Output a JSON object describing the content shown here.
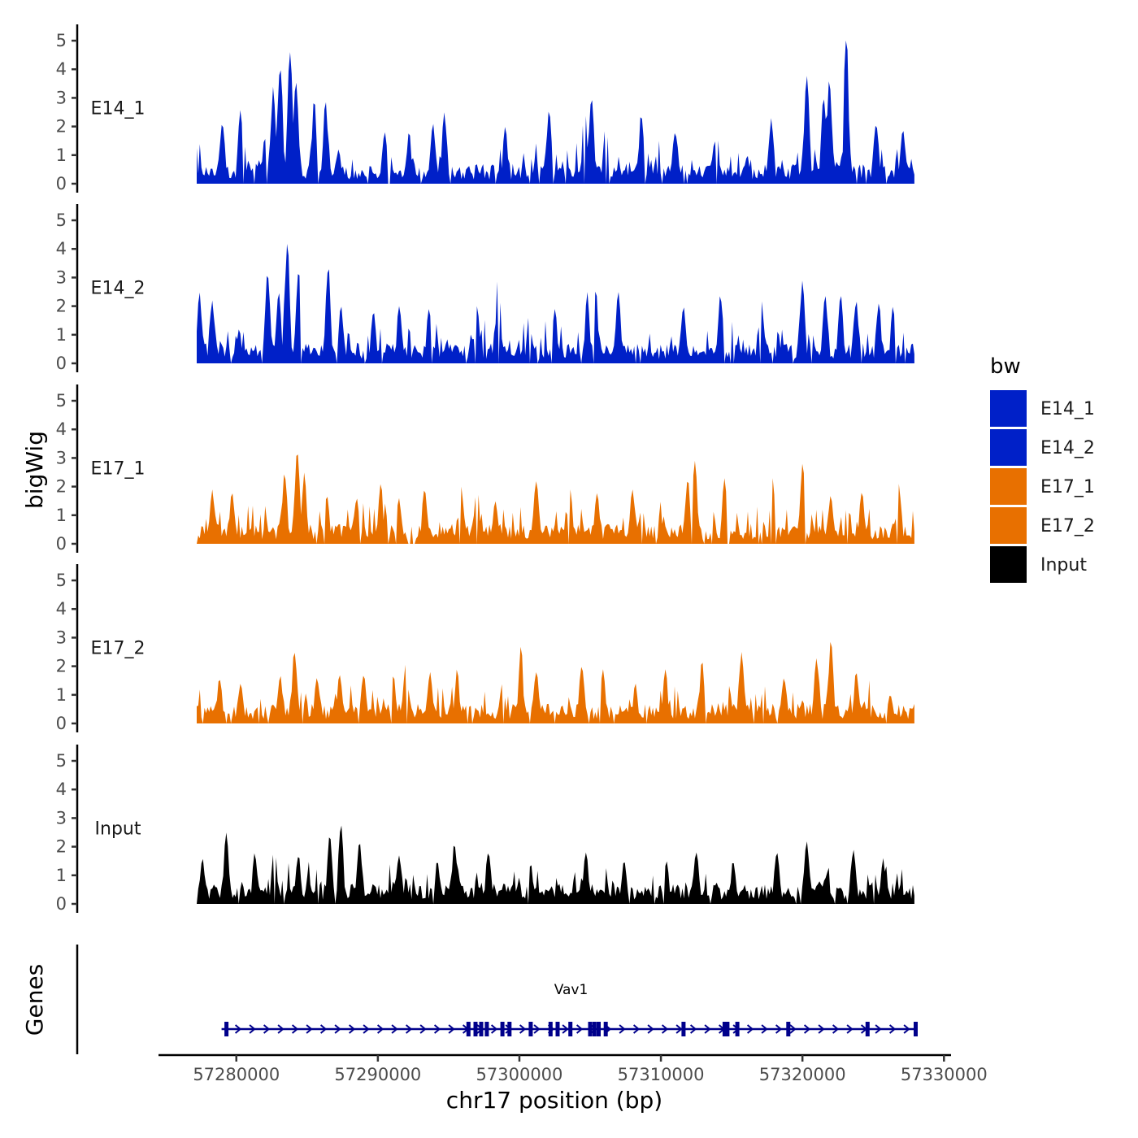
{
  "chart_data": {
    "type": "area",
    "title": "",
    "xlabel": "chr17 position (bp)",
    "ylabel": "bigWig",
    "genes_label": "Genes",
    "xlim": [
      57274500,
      57330500
    ],
    "ylim": [
      0,
      5.2
    ],
    "x_ticks": [
      57280000,
      57290000,
      57300000,
      57310000,
      57320000,
      57330000
    ],
    "x_tick_labels": [
      "57280000",
      "57290000",
      "57300000",
      "57310000",
      "57320000",
      "57330000"
    ],
    "y_ticks": [
      0,
      1,
      2,
      3,
      4,
      5
    ],
    "y_tick_labels": [
      "0",
      "1",
      "2",
      "3",
      "4",
      "5"
    ],
    "region_start": 57277200,
    "region_end": 57328000,
    "legend": {
      "title": "bw",
      "position": "right",
      "entries": [
        {
          "label": "E14_1",
          "color": "#0020c8"
        },
        {
          "label": "E14_2",
          "color": "#0020c8"
        },
        {
          "label": "E17_1",
          "color": "#e87000"
        },
        {
          "label": "E17_2",
          "color": "#e87000"
        },
        {
          "label": "Input",
          "color": "#000000"
        }
      ]
    },
    "series": [
      {
        "name": "E14_1",
        "color": "#0020c8",
        "max": 5.1,
        "peaks": [
          {
            "x": 57279000,
            "y": 2.1
          },
          {
            "x": 57280300,
            "y": 2.6
          },
          {
            "x": 57282000,
            "y": 1.6
          },
          {
            "x": 57282600,
            "y": 3.4
          },
          {
            "x": 57283100,
            "y": 4.1
          },
          {
            "x": 57283800,
            "y": 4.6
          },
          {
            "x": 57284200,
            "y": 3.6
          },
          {
            "x": 57285500,
            "y": 2.9
          },
          {
            "x": 57286300,
            "y": 2.9
          },
          {
            "x": 57287200,
            "y": 1.2
          },
          {
            "x": 57290500,
            "y": 1.8
          },
          {
            "x": 57292200,
            "y": 1.8
          },
          {
            "x": 57293900,
            "y": 2.1
          },
          {
            "x": 57294700,
            "y": 2.5
          },
          {
            "x": 57299000,
            "y": 2.0
          },
          {
            "x": 57302100,
            "y": 2.6
          },
          {
            "x": 57304600,
            "y": 2.9
          },
          {
            "x": 57305100,
            "y": 3.0
          },
          {
            "x": 57306100,
            "y": 2.1
          },
          {
            "x": 57308600,
            "y": 2.4
          },
          {
            "x": 57311000,
            "y": 1.8
          },
          {
            "x": 57313800,
            "y": 1.5
          },
          {
            "x": 57316100,
            "y": 1.0
          },
          {
            "x": 57317800,
            "y": 2.3
          },
          {
            "x": 57320300,
            "y": 3.8
          },
          {
            "x": 57321500,
            "y": 3.0
          },
          {
            "x": 57321900,
            "y": 3.7
          },
          {
            "x": 57323100,
            "y": 5.1
          },
          {
            "x": 57325200,
            "y": 2.1
          },
          {
            "x": 57327100,
            "y": 1.9
          }
        ]
      },
      {
        "name": "E14_2",
        "color": "#0020c8",
        "max": 4.2,
        "peaks": [
          {
            "x": 57277400,
            "y": 2.5
          },
          {
            "x": 57278300,
            "y": 2.2
          },
          {
            "x": 57280200,
            "y": 1.2
          },
          {
            "x": 57282200,
            "y": 3.2
          },
          {
            "x": 57283000,
            "y": 2.5
          },
          {
            "x": 57283600,
            "y": 4.2
          },
          {
            "x": 57284400,
            "y": 3.3
          },
          {
            "x": 57286500,
            "y": 3.4
          },
          {
            "x": 57287400,
            "y": 2.0
          },
          {
            "x": 57289700,
            "y": 1.8
          },
          {
            "x": 57291500,
            "y": 2.0
          },
          {
            "x": 57293600,
            "y": 1.9
          },
          {
            "x": 57297000,
            "y": 2.0
          },
          {
            "x": 57298500,
            "y": 3.1
          },
          {
            "x": 57300700,
            "y": 1.7
          },
          {
            "x": 57302500,
            "y": 1.9
          },
          {
            "x": 57304800,
            "y": 2.5
          },
          {
            "x": 57305400,
            "y": 2.6
          },
          {
            "x": 57307000,
            "y": 2.5
          },
          {
            "x": 57311600,
            "y": 2.0
          },
          {
            "x": 57314200,
            "y": 2.4
          },
          {
            "x": 57317100,
            "y": 2.2
          },
          {
            "x": 57320000,
            "y": 2.9
          },
          {
            "x": 57321600,
            "y": 2.4
          },
          {
            "x": 57322700,
            "y": 2.4
          },
          {
            "x": 57323800,
            "y": 2.2
          },
          {
            "x": 57325400,
            "y": 2.1
          },
          {
            "x": 57326400,
            "y": 2.0
          }
        ]
      },
      {
        "name": "E17_1",
        "color": "#e87000",
        "max": 3.3,
        "peaks": [
          {
            "x": 57278300,
            "y": 1.9
          },
          {
            "x": 57279700,
            "y": 1.8
          },
          {
            "x": 57283400,
            "y": 2.5
          },
          {
            "x": 57284300,
            "y": 3.3
          },
          {
            "x": 57284800,
            "y": 2.5
          },
          {
            "x": 57286400,
            "y": 1.7
          },
          {
            "x": 57288500,
            "y": 1.6
          },
          {
            "x": 57290200,
            "y": 2.1
          },
          {
            "x": 57291500,
            "y": 1.6
          },
          {
            "x": 57293300,
            "y": 1.9
          },
          {
            "x": 57295900,
            "y": 2.0
          },
          {
            "x": 57297000,
            "y": 2.0
          },
          {
            "x": 57298300,
            "y": 1.5
          },
          {
            "x": 57301200,
            "y": 2.2
          },
          {
            "x": 57303600,
            "y": 1.9
          },
          {
            "x": 57305500,
            "y": 1.8
          },
          {
            "x": 57308000,
            "y": 1.9
          },
          {
            "x": 57311900,
            "y": 2.3
          },
          {
            "x": 57312400,
            "y": 2.9
          },
          {
            "x": 57314500,
            "y": 2.3
          },
          {
            "x": 57317900,
            "y": 2.3
          },
          {
            "x": 57320000,
            "y": 2.8
          },
          {
            "x": 57322000,
            "y": 1.7
          },
          {
            "x": 57324200,
            "y": 1.8
          },
          {
            "x": 57326800,
            "y": 2.1
          }
        ]
      },
      {
        "name": "E17_2",
        "color": "#e87000",
        "max": 2.9,
        "peaks": [
          {
            "x": 57278800,
            "y": 1.6
          },
          {
            "x": 57280300,
            "y": 1.4
          },
          {
            "x": 57283100,
            "y": 1.7
          },
          {
            "x": 57284100,
            "y": 2.5
          },
          {
            "x": 57285700,
            "y": 1.6
          },
          {
            "x": 57287300,
            "y": 1.7
          },
          {
            "x": 57289000,
            "y": 1.7
          },
          {
            "x": 57291100,
            "y": 1.7
          },
          {
            "x": 57292000,
            "y": 2.2
          },
          {
            "x": 57293700,
            "y": 1.8
          },
          {
            "x": 57295600,
            "y": 1.9
          },
          {
            "x": 57298800,
            "y": 1.4
          },
          {
            "x": 57300100,
            "y": 2.7
          },
          {
            "x": 57301200,
            "y": 1.8
          },
          {
            "x": 57304400,
            "y": 2.0
          },
          {
            "x": 57305900,
            "y": 1.9
          },
          {
            "x": 57308200,
            "y": 1.4
          },
          {
            "x": 57310300,
            "y": 1.9
          },
          {
            "x": 57312900,
            "y": 2.2
          },
          {
            "x": 57315700,
            "y": 2.5
          },
          {
            "x": 57318700,
            "y": 1.6
          },
          {
            "x": 57321000,
            "y": 2.3
          },
          {
            "x": 57322000,
            "y": 2.9
          },
          {
            "x": 57323800,
            "y": 1.8
          },
          {
            "x": 57326200,
            "y": 1.0
          }
        ]
      },
      {
        "name": "Input",
        "color": "#000000",
        "max": 2.8,
        "peaks": [
          {
            "x": 57277600,
            "y": 1.6
          },
          {
            "x": 57279300,
            "y": 2.5
          },
          {
            "x": 57281300,
            "y": 1.8
          },
          {
            "x": 57282700,
            "y": 2.2
          },
          {
            "x": 57284400,
            "y": 1.7
          },
          {
            "x": 57286600,
            "y": 2.4
          },
          {
            "x": 57287400,
            "y": 2.8
          },
          {
            "x": 57288700,
            "y": 2.2
          },
          {
            "x": 57291500,
            "y": 1.7
          },
          {
            "x": 57294200,
            "y": 1.5
          },
          {
            "x": 57295400,
            "y": 2.1
          },
          {
            "x": 57297800,
            "y": 1.8
          },
          {
            "x": 57300800,
            "y": 1.4
          },
          {
            "x": 57304700,
            "y": 1.8
          },
          {
            "x": 57307400,
            "y": 1.5
          },
          {
            "x": 57310400,
            "y": 1.5
          },
          {
            "x": 57312500,
            "y": 1.8
          },
          {
            "x": 57315100,
            "y": 1.5
          },
          {
            "x": 57318200,
            "y": 1.8
          },
          {
            "x": 57320300,
            "y": 2.2
          },
          {
            "x": 57323600,
            "y": 1.9
          },
          {
            "x": 57325700,
            "y": 1.6
          }
        ]
      }
    ],
    "gene": {
      "name": "Vav1",
      "start": 57279300,
      "end": 57328000,
      "strand": "+",
      "exons": [
        57279300,
        57296400,
        57296900,
        57297300,
        57297700,
        57298800,
        57299300,
        57300800,
        57302200,
        57302700,
        57303600,
        57305000,
        57305300,
        57305600,
        57306100,
        57311600,
        57314500,
        57314700,
        57315400,
        57319000,
        57324600,
        57328000
      ]
    }
  }
}
